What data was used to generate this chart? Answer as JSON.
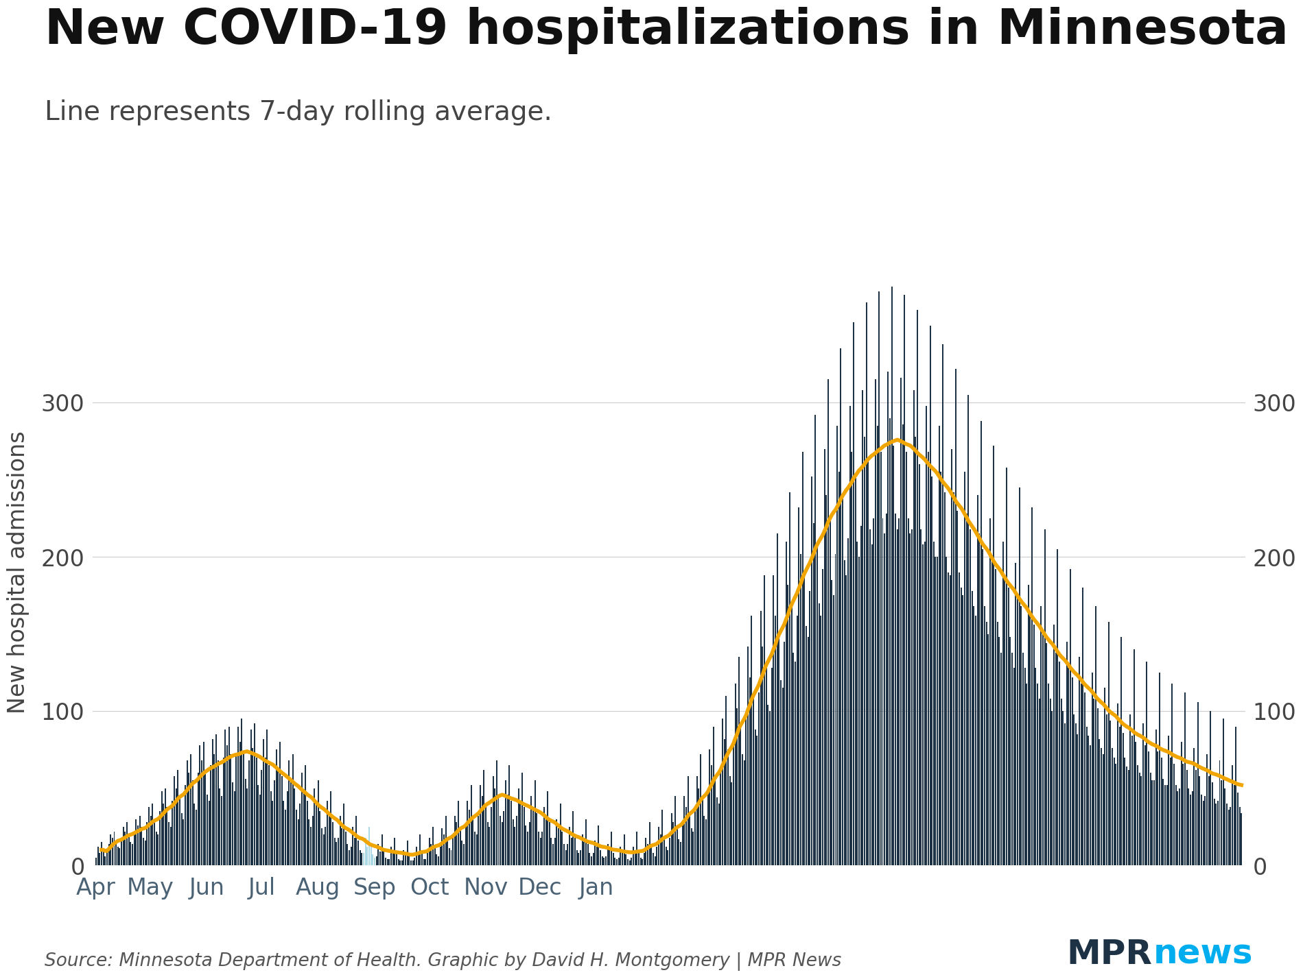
{
  "title": "New COVID-19 hospitalizations in Minnesota",
  "subtitle": "Line represents 7-day rolling average.",
  "ylabel_left": "New hospital admissions",
  "source_text": "Source: Minnesota Department of Health. Graphic by David H. Montgomery | MPR News",
  "bar_color": "#1d3244",
  "line_color": "#f0a500",
  "light_bar_color": "#add8e6",
  "background_color": "#ffffff",
  "ylim": [
    0,
    380
  ],
  "yticks": [
    0,
    100,
    200,
    300
  ],
  "title_fontsize": 52,
  "subtitle_fontsize": 28,
  "ylabel_fontsize": 24,
  "tick_fontsize": 24,
  "source_fontsize": 19,
  "mpr_dark": "#1d3244",
  "mpr_teal": "#00aeef",
  "start_date": "2020-04-01",
  "daily_values": [
    5,
    12,
    8,
    15,
    10,
    6,
    9,
    14,
    20,
    18,
    22,
    16,
    12,
    11,
    18,
    25,
    22,
    28,
    20,
    15,
    14,
    22,
    30,
    26,
    32,
    25,
    18,
    16,
    28,
    38,
    32,
    40,
    30,
    22,
    20,
    35,
    48,
    40,
    50,
    38,
    28,
    25,
    42,
    58,
    50,
    62,
    45,
    34,
    30,
    52,
    68,
    60,
    72,
    55,
    40,
    36,
    60,
    78,
    68,
    80,
    62,
    46,
    42,
    65,
    82,
    72,
    85,
    68,
    50,
    45,
    70,
    88,
    78,
    90,
    72,
    54,
    48,
    72,
    90,
    80,
    95,
    74,
    56,
    50,
    68,
    88,
    76,
    92,
    70,
    52,
    46,
    62,
    82,
    70,
    88,
    65,
    48,
    42,
    55,
    75,
    62,
    80,
    58,
    42,
    36,
    48,
    68,
    55,
    72,
    50,
    36,
    30,
    40,
    60,
    48,
    65,
    42,
    30,
    25,
    32,
    50,
    40,
    55,
    35,
    24,
    20,
    25,
    42,
    32,
    48,
    28,
    18,
    15,
    18,
    32,
    24,
    40,
    22,
    14,
    10,
    12,
    25,
    18,
    32,
    16,
    10,
    8,
    8,
    18,
    12,
    25,
    12,
    7,
    5,
    6,
    14,
    9,
    20,
    9,
    5,
    4,
    4,
    12,
    8,
    18,
    8,
    4,
    3,
    3,
    10,
    7,
    16,
    6,
    3,
    3,
    5,
    12,
    9,
    20,
    8,
    4,
    4,
    8,
    18,
    14,
    25,
    12,
    7,
    6,
    12,
    24,
    20,
    32,
    18,
    11,
    10,
    18,
    32,
    28,
    42,
    25,
    16,
    14,
    25,
    42,
    36,
    52,
    32,
    22,
    20,
    32,
    52,
    45,
    62,
    40,
    28,
    25,
    38,
    58,
    50,
    68,
    46,
    32,
    28,
    35,
    55,
    46,
    65,
    42,
    30,
    25,
    32,
    50,
    42,
    60,
    38,
    26,
    22,
    28,
    45,
    38,
    55,
    34,
    22,
    18,
    22,
    38,
    30,
    48,
    28,
    18,
    14,
    18,
    30,
    24,
    40,
    22,
    14,
    10,
    14,
    25,
    18,
    35,
    18,
    10,
    8,
    10,
    20,
    15,
    30,
    14,
    8,
    6,
    8,
    16,
    12,
    26,
    10,
    6,
    5,
    6,
    14,
    10,
    22,
    8,
    5,
    4,
    5,
    12,
    8,
    20,
    7,
    4,
    3,
    5,
    12,
    9,
    22,
    8,
    5,
    4,
    8,
    18,
    14,
    28,
    12,
    8,
    6,
    12,
    25,
    20,
    36,
    18,
    12,
    10,
    18,
    34,
    28,
    45,
    25,
    17,
    15,
    26,
    45,
    38,
    58,
    34,
    24,
    22,
    36,
    58,
    50,
    72,
    44,
    32,
    30,
    48,
    75,
    65,
    90,
    58,
    44,
    40,
    62,
    95,
    82,
    110,
    75,
    58,
    54,
    78,
    118,
    102,
    135,
    92,
    72,
    68,
    95,
    142,
    122,
    162,
    110,
    88,
    84,
    112,
    165,
    142,
    188,
    130,
    104,
    100,
    128,
    188,
    162,
    215,
    150,
    120,
    115,
    145,
    210,
    182,
    242,
    170,
    138,
    132,
    162,
    232,
    202,
    268,
    190,
    155,
    148,
    178,
    252,
    222,
    292,
    208,
    170,
    162,
    192,
    270,
    240,
    315,
    225,
    185,
    175,
    202,
    285,
    255,
    335,
    240,
    198,
    188,
    212,
    298,
    268,
    352,
    252,
    210,
    200,
    220,
    308,
    278,
    365,
    262,
    218,
    208,
    225,
    315,
    285,
    372,
    268,
    225,
    215,
    228,
    320,
    290,
    375,
    272,
    228,
    218,
    225,
    316,
    286,
    370,
    268,
    225,
    215,
    218,
    308,
    278,
    360,
    260,
    218,
    208,
    210,
    298,
    268,
    350,
    252,
    210,
    200,
    200,
    285,
    255,
    338,
    242,
    200,
    190,
    188,
    270,
    242,
    322,
    230,
    190,
    180,
    175,
    255,
    228,
    305,
    218,
    178,
    168,
    162,
    240,
    215,
    288,
    205,
    168,
    158,
    150,
    225,
    200,
    272,
    192,
    158,
    148,
    138,
    210,
    188,
    258,
    180,
    148,
    138,
    128,
    196,
    175,
    245,
    168,
    138,
    128,
    118,
    182,
    162,
    232,
    156,
    128,
    118,
    108,
    168,
    150,
    218,
    144,
    118,
    108,
    100,
    156,
    138,
    205,
    132,
    108,
    100,
    92,
    145,
    128,
    192,
    122,
    98,
    92,
    85,
    135,
    118,
    180,
    112,
    90,
    84,
    78,
    125,
    108,
    168,
    102,
    82,
    76,
    72,
    115,
    98,
    158,
    94,
    76,
    70,
    66,
    105,
    90,
    148,
    86,
    70,
    64,
    62,
    98,
    84,
    140,
    80,
    65,
    60,
    58,
    92,
    78,
    132,
    74,
    60,
    55,
    55,
    88,
    74,
    125,
    70,
    56,
    52,
    52,
    84,
    70,
    118,
    66,
    52,
    48,
    50,
    80,
    66,
    112,
    62,
    50,
    46,
    48,
    76,
    62,
    106,
    58,
    46,
    42,
    45,
    72,
    58,
    100,
    54,
    43,
    40,
    42,
    68,
    55,
    95,
    50,
    40,
    36,
    38,
    65,
    52,
    90,
    47,
    38,
    34
  ],
  "light_bar_indices": [
    147,
    148,
    149,
    150,
    151,
    152,
    153
  ]
}
